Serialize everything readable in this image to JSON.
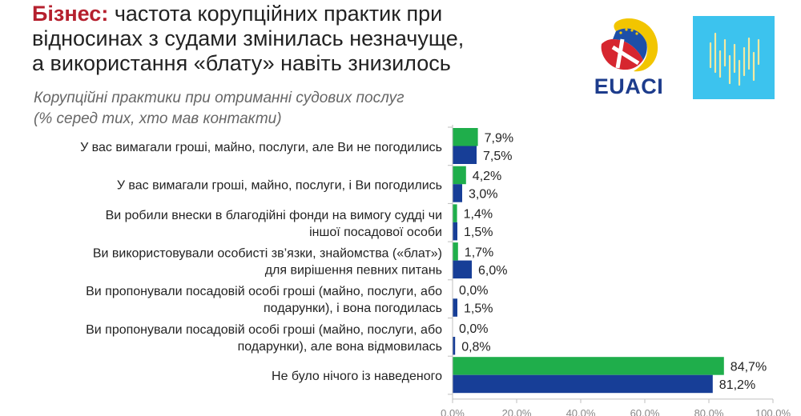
{
  "header": {
    "title_accent": "Бізнес:",
    "title_rest": "частота корупційних практик при відносинах з судами змінилась незначуще, а використання «блату» навіть знизилось"
  },
  "logo": {
    "text": "EUACI",
    "euaci_icon": "euaci-emblem-icon",
    "partner_icon": "bars-waveform-icon"
  },
  "chart_data": {
    "type": "bar",
    "orientation": "horizontal",
    "title": "Корупційні практики при отриманні судових послуг",
    "subtitle": "(% серед тих, хто мав контакти)",
    "categories": [
      [
        "У вас вимагали гроші, майно, послуги, але Ви не погодились"
      ],
      [
        "У вас вимагали гроші, майно, послуги, і Ви погодились"
      ],
      [
        "Ви робили внески в благодійні фонди на вимогу судді чи",
        "іншої посадової особи"
      ],
      [
        "Ви використовували особисті зв’язки, знайомства («блат»)",
        "для вирішення певних питань"
      ],
      [
        "Ви пропонували посадовій особі гроші (майно, послуги, або",
        "подарунки), і вона погодилась"
      ],
      [
        "Ви пропонували посадовій особі гроші (майно, послуги, або",
        "подарунки), але вона відмовилась"
      ],
      [
        "Не було нічого із наведеного"
      ]
    ],
    "series": [
      {
        "color": "#1fae4b",
        "values": [
          7.9,
          4.2,
          1.4,
          1.7,
          0.0,
          0.0,
          84.7
        ],
        "labels": [
          "7,9%",
          "4,2%",
          "1,4%",
          "1,7%",
          "0,0%",
          "0,0%",
          "84,7%"
        ]
      },
      {
        "color": "#173e97",
        "values": [
          7.5,
          3.0,
          1.5,
          6.0,
          1.5,
          0.8,
          81.2
        ],
        "labels": [
          "7,5%",
          "3,0%",
          "1,5%",
          "6,0%",
          "1,5%",
          "0,8%",
          "81,2%"
        ]
      }
    ],
    "xlim": [
      0,
      100
    ],
    "xticks": [
      0,
      20,
      40,
      60,
      80,
      100
    ],
    "xtick_labels": [
      "0,0%",
      "20,0%",
      "40,0%",
      "60,0%",
      "80,0%",
      "100,0%"
    ],
    "grid": false,
    "legend": "none"
  }
}
